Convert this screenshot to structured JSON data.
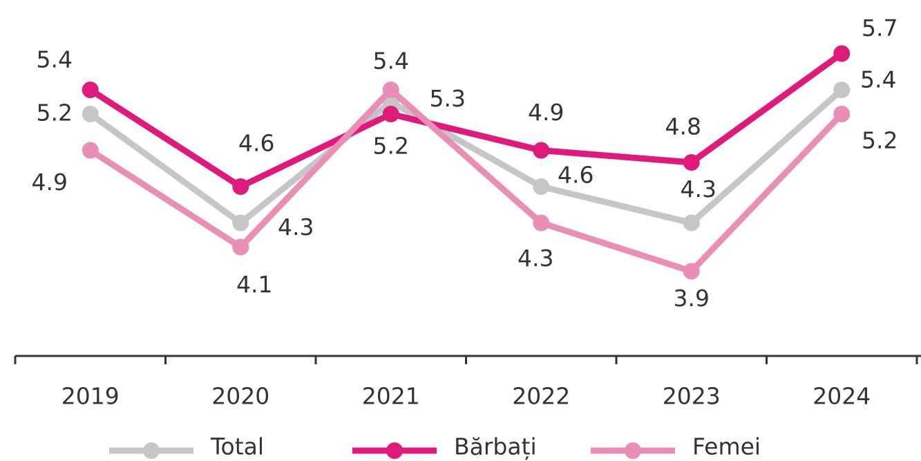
{
  "chart_data": {
    "type": "line",
    "categories": [
      "2019",
      "2020",
      "2021",
      "2022",
      "2023",
      "2024"
    ],
    "series": [
      {
        "name": "Total",
        "color": "#c6c6c6",
        "values": [
          5.2,
          4.3,
          5.3,
          4.6,
          4.3,
          5.4
        ]
      },
      {
        "name": "Bărbați",
        "color": "#e0197d",
        "values": [
          5.4,
          4.6,
          5.2,
          4.9,
          4.8,
          5.7
        ]
      },
      {
        "name": "Femei",
        "color": "#e98fb6",
        "values": [
          4.9,
          4.1,
          5.4,
          4.3,
          3.9,
          5.2
        ]
      }
    ],
    "ylim": [
      3.2,
      5.8
    ],
    "legend": "bottom"
  }
}
